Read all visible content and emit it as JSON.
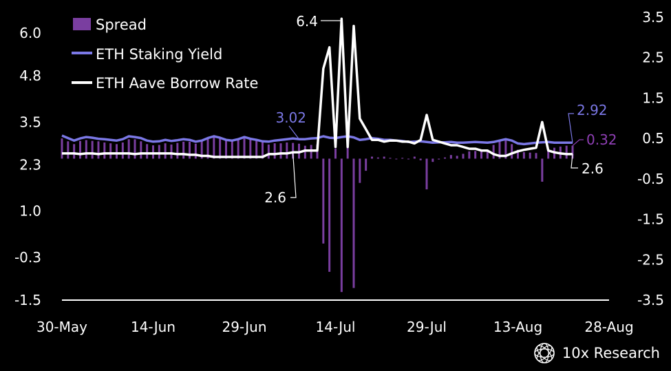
{
  "chart_data": {
    "type": "bar+line",
    "legend": [
      "Spread",
      "ETH Staking Yield",
      "ETH Aave Borrow Rate"
    ],
    "left_axis": {
      "ticks": [
        "6.0",
        "4.8",
        "3.5",
        "2.3",
        "1.0",
        "-0.3",
        "-1.5"
      ],
      "ylim": [
        -1.5,
        6.0
      ]
    },
    "right_axis": {
      "ticks": [
        "3.5",
        "2.5",
        "1.5",
        "0.5",
        "-0.5",
        "-1.5",
        "-2.5",
        "-3.5"
      ],
      "ylim": [
        -3.5,
        3.5
      ]
    },
    "x_ticks": [
      "30-May",
      "14-Jun",
      "29-Jun",
      "14-Jul",
      "29-Jul",
      "13-Aug",
      "28-Aug"
    ],
    "x_range": [
      "2024-05-30",
      "2024-08-28"
    ],
    "dates": [
      "2024-05-30",
      "2024-05-31",
      "2024-06-01",
      "2024-06-02",
      "2024-06-03",
      "2024-06-04",
      "2024-06-05",
      "2024-06-06",
      "2024-06-07",
      "2024-06-08",
      "2024-06-09",
      "2024-06-10",
      "2024-06-11",
      "2024-06-12",
      "2024-06-13",
      "2024-06-14",
      "2024-06-15",
      "2024-06-16",
      "2024-06-17",
      "2024-06-18",
      "2024-06-19",
      "2024-06-20",
      "2024-06-21",
      "2024-06-22",
      "2024-06-23",
      "2024-06-24",
      "2024-06-25",
      "2024-06-26",
      "2024-06-27",
      "2024-06-28",
      "2024-06-29",
      "2024-06-30",
      "2024-07-01",
      "2024-07-02",
      "2024-07-03",
      "2024-07-04",
      "2024-07-05",
      "2024-07-06",
      "2024-07-07",
      "2024-07-08",
      "2024-07-09",
      "2024-07-10",
      "2024-07-11",
      "2024-07-12",
      "2024-07-13",
      "2024-07-14",
      "2024-07-15",
      "2024-07-16",
      "2024-07-17",
      "2024-07-18",
      "2024-07-19",
      "2024-07-20",
      "2024-07-21",
      "2024-07-22",
      "2024-07-23",
      "2024-07-24",
      "2024-07-25",
      "2024-07-26",
      "2024-07-27",
      "2024-07-28",
      "2024-07-29",
      "2024-07-30",
      "2024-07-31",
      "2024-08-01",
      "2024-08-02",
      "2024-08-03",
      "2024-08-04",
      "2024-08-05",
      "2024-08-06",
      "2024-08-07",
      "2024-08-08",
      "2024-08-09",
      "2024-08-10",
      "2024-08-11",
      "2024-08-12",
      "2024-08-13",
      "2024-08-14",
      "2024-08-15",
      "2024-08-16",
      "2024-08-17",
      "2024-08-18",
      "2024-08-19",
      "2024-08-20",
      "2024-08-21",
      "2024-08-22"
    ],
    "series": [
      {
        "name": "ETH Staking Yield",
        "axis": "left",
        "color": "#7b78e6",
        "values": [
          3.12,
          3.05,
          2.98,
          3.04,
          3.08,
          3.06,
          3.03,
          3.02,
          3.0,
          2.98,
          3.02,
          3.1,
          3.08,
          3.05,
          2.98,
          2.95,
          2.96,
          3.0,
          2.97,
          2.99,
          3.02,
          3.0,
          2.95,
          2.98,
          3.05,
          3.1,
          3.06,
          3.0,
          2.98,
          3.02,
          3.08,
          3.03,
          3.0,
          2.96,
          2.95,
          2.98,
          3.0,
          3.02,
          3.04,
          3.02,
          3.02,
          3.04,
          3.05,
          3.1,
          3.06,
          3.05,
          3.08,
          3.1,
          3.07,
          3.0,
          3.02,
          3.05,
          3.03,
          3.0,
          3.0,
          2.98,
          2.97,
          2.94,
          2.95,
          2.96,
          2.94,
          2.92,
          2.93,
          2.93,
          2.94,
          2.92,
          2.92,
          2.93,
          2.94,
          2.93,
          2.92,
          2.94,
          2.98,
          3.02,
          2.98,
          2.9,
          2.88,
          2.9,
          2.92,
          2.93,
          2.94,
          2.92,
          2.92,
          2.92,
          2.92
        ]
      },
      {
        "name": "ETH Aave Borrow Rate",
        "axis": "left",
        "color": "#ffffff",
        "values": [
          2.62,
          2.62,
          2.62,
          2.6,
          2.62,
          2.62,
          2.6,
          2.62,
          2.62,
          2.62,
          2.62,
          2.62,
          2.6,
          2.62,
          2.62,
          2.62,
          2.62,
          2.62,
          2.62,
          2.6,
          2.6,
          2.58,
          2.58,
          2.55,
          2.55,
          2.52,
          2.52,
          2.52,
          2.52,
          2.52,
          2.52,
          2.52,
          2.52,
          2.52,
          2.6,
          2.6,
          2.62,
          2.62,
          2.65,
          2.65,
          2.7,
          2.7,
          2.7,
          5.0,
          5.6,
          2.8,
          6.4,
          2.8,
          6.2,
          3.6,
          3.3,
          3.0,
          3.0,
          2.95,
          2.98,
          2.98,
          2.95,
          2.95,
          2.9,
          3.0,
          3.7,
          3.0,
          2.95,
          2.9,
          2.85,
          2.85,
          2.8,
          2.75,
          2.75,
          2.7,
          2.7,
          2.6,
          2.55,
          2.55,
          2.62,
          2.68,
          2.72,
          2.75,
          2.78,
          3.5,
          2.7,
          2.65,
          2.62,
          2.6,
          2.6
        ]
      },
      {
        "name": "Spread",
        "axis": "right",
        "color": "#7a3ea0",
        "values": [
          0.5,
          0.43,
          0.36,
          0.44,
          0.46,
          0.44,
          0.43,
          0.4,
          0.38,
          0.36,
          0.4,
          0.48,
          0.48,
          0.43,
          0.36,
          0.33,
          0.34,
          0.38,
          0.35,
          0.39,
          0.42,
          0.42,
          0.37,
          0.43,
          0.5,
          0.58,
          0.54,
          0.48,
          0.46,
          0.5,
          0.56,
          0.51,
          0.48,
          0.44,
          0.35,
          0.38,
          0.38,
          0.4,
          0.39,
          0.37,
          0.32,
          0.34,
          0.35,
          -2.1,
          -2.8,
          0.25,
          -3.3,
          0.3,
          -3.2,
          -0.6,
          -0.3,
          0.05,
          0.03,
          0.05,
          0.02,
          0.0,
          0.02,
          -0.01,
          0.05,
          -0.04,
          -0.76,
          -0.08,
          -0.02,
          0.03,
          0.09,
          0.07,
          0.12,
          0.18,
          0.19,
          0.23,
          0.22,
          0.34,
          0.43,
          0.47,
          0.36,
          0.22,
          0.16,
          0.15,
          0.14,
          -0.57,
          0.24,
          0.27,
          0.3,
          0.32,
          0.32
        ]
      }
    ],
    "annotations": [
      "6.4",
      "3.02",
      "2.6",
      "2.92",
      "0.32",
      "2.6"
    ],
    "annotation_colors": [
      "#ffffff",
      "#7b78e6",
      "#ffffff",
      "#7b78e6",
      "#8f3fb5",
      "#ffffff"
    ],
    "grid": false,
    "legend_position": "top-left"
  },
  "brand": {
    "name": "10x Research",
    "icon": "globe-logo-icon"
  }
}
